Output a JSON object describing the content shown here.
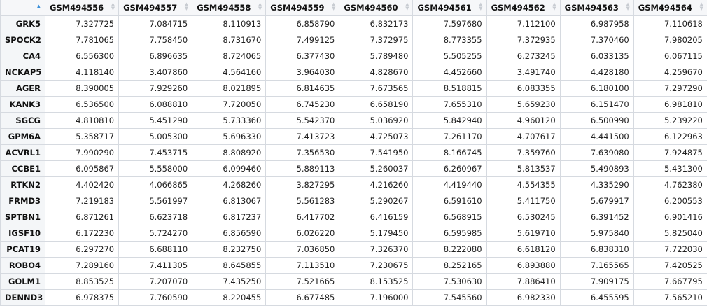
{
  "table": {
    "sort_icon": "sort-ascending-icon",
    "accent": "#3a8fd8",
    "columns": [
      "GSM494556",
      "GSM494557",
      "GSM494558",
      "GSM494559",
      "GSM494560",
      "GSM494561",
      "GSM494562",
      "GSM494563",
      "GSM494564"
    ],
    "rows": [
      {
        "name": "GRK5",
        "values": [
          "7.327725",
          "7.084715",
          "8.110913",
          "6.858790",
          "6.832173",
          "7.597680",
          "7.112100",
          "6.987958",
          "7.110618"
        ]
      },
      {
        "name": "SPOCK2",
        "values": [
          "7.781065",
          "7.758450",
          "8.731670",
          "7.499125",
          "7.372975",
          "8.773355",
          "7.372935",
          "7.370460",
          "7.980205"
        ]
      },
      {
        "name": "CA4",
        "values": [
          "6.556300",
          "6.896635",
          "8.724065",
          "6.377430",
          "5.789480",
          "5.505255",
          "6.273245",
          "6.033135",
          "6.067115"
        ]
      },
      {
        "name": "NCKAP5",
        "values": [
          "4.118140",
          "3.407860",
          "4.564160",
          "3.964030",
          "4.828670",
          "4.452660",
          "3.491740",
          "4.428180",
          "4.259670"
        ]
      },
      {
        "name": "AGER",
        "values": [
          "8.390005",
          "7.929260",
          "8.021895",
          "6.814635",
          "7.673565",
          "8.518815",
          "6.083355",
          "6.180100",
          "7.297290"
        ]
      },
      {
        "name": "KANK3",
        "values": [
          "6.536500",
          "6.088810",
          "7.720050",
          "6.745230",
          "6.658190",
          "7.655310",
          "5.659230",
          "6.151470",
          "6.981810"
        ]
      },
      {
        "name": "SGCG",
        "values": [
          "4.810810",
          "5.451290",
          "5.733360",
          "5.542370",
          "5.036920",
          "5.842940",
          "4.960120",
          "6.500990",
          "5.239220"
        ]
      },
      {
        "name": "GPM6A",
        "values": [
          "5.358717",
          "5.005300",
          "5.696330",
          "7.413723",
          "4.725073",
          "7.261170",
          "4.707617",
          "4.441500",
          "6.122963"
        ]
      },
      {
        "name": "ACVRL1",
        "values": [
          "7.990290",
          "7.453715",
          "8.808920",
          "7.356530",
          "7.541950",
          "8.166745",
          "7.359760",
          "7.639080",
          "7.924875"
        ]
      },
      {
        "name": "CCBE1",
        "values": [
          "6.095867",
          "5.558000",
          "6.099460",
          "5.889113",
          "5.260037",
          "6.260967",
          "5.813537",
          "5.490893",
          "5.431300"
        ]
      },
      {
        "name": "RTKN2",
        "values": [
          "4.402420",
          "4.066865",
          "4.268260",
          "3.827295",
          "4.216260",
          "4.419440",
          "4.554355",
          "4.335290",
          "4.762380"
        ]
      },
      {
        "name": "FRMD3",
        "values": [
          "7.219183",
          "5.561997",
          "6.813067",
          "5.561283",
          "5.290267",
          "6.591610",
          "5.411750",
          "5.679917",
          "6.200553"
        ]
      },
      {
        "name": "SPTBN1",
        "values": [
          "6.871261",
          "6.623718",
          "6.817237",
          "6.417702",
          "6.416159",
          "6.568915",
          "6.530245",
          "6.391452",
          "6.901416"
        ]
      },
      {
        "name": "IGSF10",
        "values": [
          "6.172230",
          "5.724270",
          "6.856590",
          "6.026220",
          "5.179450",
          "6.595985",
          "5.619710",
          "5.975840",
          "5.825040"
        ]
      },
      {
        "name": "PCAT19",
        "values": [
          "6.297270",
          "6.688110",
          "8.232750",
          "7.036850",
          "7.326370",
          "8.222080",
          "6.618120",
          "6.838310",
          "7.722030"
        ]
      },
      {
        "name": "ROBO4",
        "values": [
          "7.289160",
          "7.411305",
          "8.645855",
          "7.113510",
          "7.230675",
          "8.252165",
          "6.893880",
          "7.165565",
          "7.420525"
        ]
      },
      {
        "name": "GOLM1",
        "values": [
          "8.853525",
          "7.207070",
          "7.435250",
          "7.521665",
          "8.153525",
          "7.530630",
          "7.886410",
          "7.909175",
          "7.667795"
        ]
      },
      {
        "name": "DENND3",
        "values": [
          "6.978375",
          "7.760590",
          "8.220455",
          "6.677485",
          "7.196000",
          "7.545560",
          "6.982330",
          "6.455595",
          "7.565210"
        ]
      }
    ]
  }
}
